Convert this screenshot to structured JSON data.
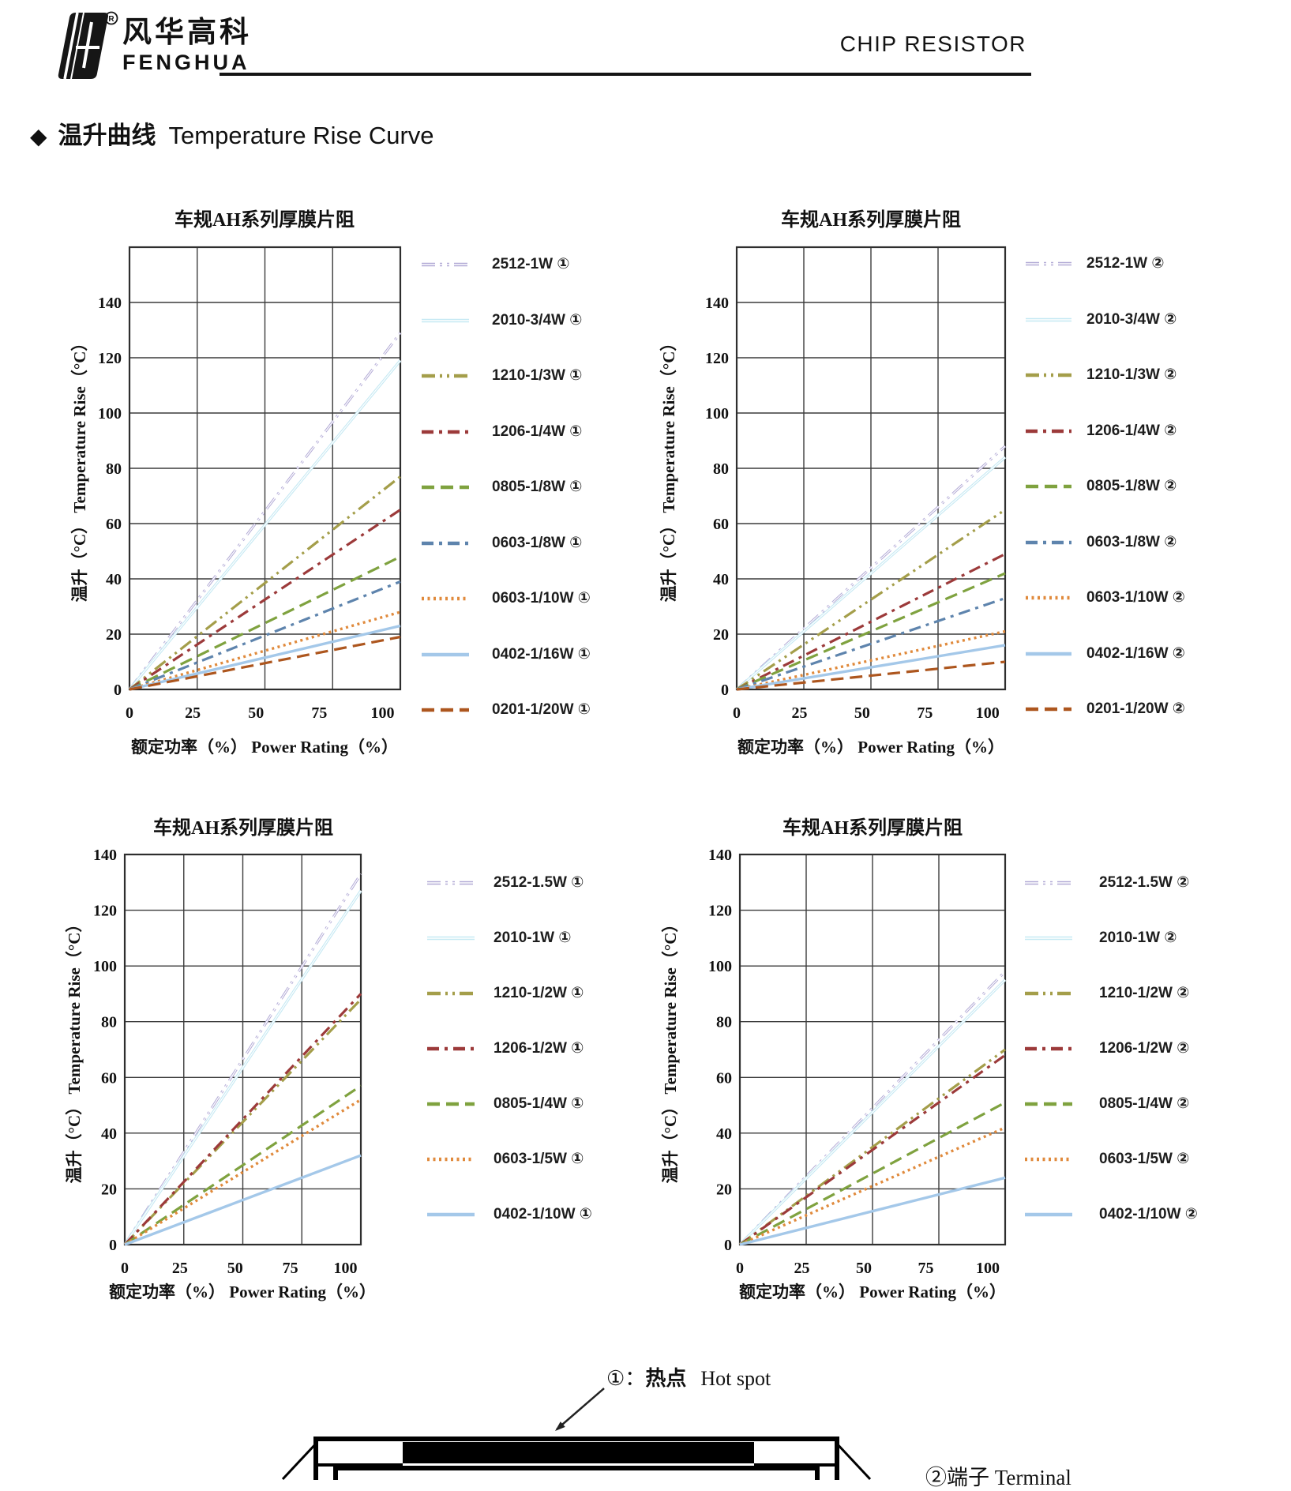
{
  "header": {
    "brand_cn": "风华高科",
    "brand_en": "FENGHUA",
    "registered_mark": "®",
    "doc_title": "CHIP RESISTOR"
  },
  "section": {
    "bullet": "◆",
    "title_cn": "温升曲线",
    "title_en": "Temperature Rise Curve"
  },
  "footnotes": {
    "hot_spot": {
      "marker": "①：",
      "label_cn": "热点",
      "label_en": "Hot spot"
    },
    "terminal": {
      "text": "②端子 Terminal"
    }
  },
  "chart_data": [
    {
      "type": "line",
      "title": "车规AH系列厚膜片阻",
      "ylabel": "温升（°C）  Temperature Rise（°C）",
      "xlabel": "额定功率（%）   Power Rating（%）",
      "x": [
        0,
        107
      ],
      "xticks": [
        0,
        25,
        50,
        75,
        100
      ],
      "yticks": [
        0,
        20,
        40,
        60,
        80,
        100,
        120,
        140
      ],
      "xlim": [
        0,
        107
      ],
      "ylim": [
        0,
        160
      ],
      "grid": true,
      "legend_position": "right",
      "series": [
        {
          "name": "2512-1W ①",
          "color": "#b3abd6",
          "style": "dashdotdot",
          "double": true,
          "values": [
            0,
            129
          ]
        },
        {
          "name": "2010-3/4W ①",
          "color": "#c6e9f3",
          "style": "solid",
          "double": true,
          "values": [
            0,
            119
          ]
        },
        {
          "name": "1210-1/3W ①",
          "color": "#a49e4a",
          "style": "dashdotdot",
          "double": false,
          "values": [
            0,
            77
          ]
        },
        {
          "name": "1206-1/4W ①",
          "color": "#9c3a3a",
          "style": "dashdot",
          "double": false,
          "values": [
            0,
            65
          ]
        },
        {
          "name": "0805-1/8W ①",
          "color": "#7fa23f",
          "style": "dashed",
          "double": false,
          "values": [
            0,
            48
          ]
        },
        {
          "name": "0603-1/8W ①",
          "color": "#5e84ad",
          "style": "dashdot",
          "double": false,
          "values": [
            0,
            39
          ]
        },
        {
          "name": "0603-1/10W ①",
          "color": "#e08a3c",
          "style": "dotted",
          "double": false,
          "values": [
            0,
            28
          ]
        },
        {
          "name": "0402-1/16W ①",
          "color": "#a4c8e9",
          "style": "solid",
          "double": false,
          "values": [
            0,
            23
          ]
        },
        {
          "name": "0201-1/20W ①",
          "color": "#ad561e",
          "style": "dashed",
          "double": false,
          "values": [
            0,
            19
          ]
        }
      ]
    },
    {
      "type": "line",
      "title": "车规AH系列厚膜片阻",
      "ylabel": "温升（°C）  Temperature Rise（°C）",
      "xlabel": "额定功率（%）   Power Rating（%）",
      "x": [
        0,
        107
      ],
      "xticks": [
        0,
        25,
        50,
        75,
        100
      ],
      "yticks": [
        0,
        20,
        40,
        60,
        80,
        100,
        120,
        140
      ],
      "xlim": [
        0,
        107
      ],
      "ylim": [
        0,
        160
      ],
      "grid": true,
      "legend_position": "right",
      "series": [
        {
          "name": "2512-1W ②",
          "color": "#b3abd6",
          "style": "dashdotdot",
          "double": true,
          "values": [
            0,
            88
          ]
        },
        {
          "name": "2010-3/4W ②",
          "color": "#c6e9f3",
          "style": "solid",
          "double": true,
          "values": [
            0,
            84
          ]
        },
        {
          "name": "1210-1/3W ②",
          "color": "#a49e4a",
          "style": "dashdotdot",
          "double": false,
          "values": [
            0,
            65
          ]
        },
        {
          "name": "1206-1/4W ②",
          "color": "#9c3a3a",
          "style": "dashdot",
          "double": false,
          "values": [
            0,
            49
          ]
        },
        {
          "name": "0805-1/8W ②",
          "color": "#7fa23f",
          "style": "dashed",
          "double": false,
          "values": [
            0,
            42
          ]
        },
        {
          "name": "0603-1/8W ②",
          "color": "#5e84ad",
          "style": "dashdot",
          "double": false,
          "values": [
            0,
            33
          ]
        },
        {
          "name": "0603-1/10W ②",
          "color": "#e08a3c",
          "style": "dotted",
          "double": false,
          "values": [
            0,
            21
          ]
        },
        {
          "name": "0402-1/16W ②",
          "color": "#a4c8e9",
          "style": "solid",
          "double": false,
          "values": [
            0,
            16
          ]
        },
        {
          "name": "0201-1/20W ②",
          "color": "#ad561e",
          "style": "dashed",
          "double": false,
          "values": [
            0,
            10
          ]
        }
      ]
    },
    {
      "type": "line",
      "title": "车规AH系列厚膜片阻",
      "ylabel": "温升（°C）  Temperature Rise（°C）",
      "xlabel": "额定功率（%）   Power Rating（%）",
      "x": [
        0,
        107
      ],
      "xticks": [
        0,
        25,
        50,
        75,
        100
      ],
      "yticks": [
        0,
        20,
        40,
        60,
        80,
        100,
        120,
        140
      ],
      "xlim": [
        0,
        107
      ],
      "ylim": [
        0,
        140
      ],
      "grid": true,
      "legend_position": "right",
      "series": [
        {
          "name": "2512-1.5W ①",
          "color": "#b3abd6",
          "style": "dashdotdot",
          "double": true,
          "values": [
            0,
            133
          ]
        },
        {
          "name": "2010-1W ①",
          "color": "#c6e9f3",
          "style": "solid",
          "double": true,
          "values": [
            0,
            127
          ]
        },
        {
          "name": "1210-1/2W ①",
          "color": "#a49e4a",
          "style": "dashdotdot",
          "double": false,
          "values": [
            0,
            88
          ]
        },
        {
          "name": "1206-1/2W ①",
          "color": "#9c3a3a",
          "style": "dashdot",
          "double": false,
          "values": [
            0,
            90
          ]
        },
        {
          "name": "0805-1/4W ①",
          "color": "#7fa23f",
          "style": "dashed",
          "double": false,
          "values": [
            0,
            57
          ]
        },
        {
          "name": "0603-1/5W ①",
          "color": "#e08a3c",
          "style": "dotted",
          "double": false,
          "values": [
            0,
            52
          ]
        },
        {
          "name": "0402-1/10W ①",
          "color": "#a4c8e9",
          "style": "solid",
          "double": false,
          "values": [
            0,
            32
          ]
        }
      ]
    },
    {
      "type": "line",
      "title": "车规AH系列厚膜片阻",
      "ylabel": "温升（°C）  Temperature Rise（°C）",
      "xlabel": "额定功率（%）   Power Rating（%）",
      "x": [
        0,
        107
      ],
      "xticks": [
        0,
        25,
        50,
        75,
        100
      ],
      "yticks": [
        0,
        20,
        40,
        60,
        80,
        100,
        120,
        140
      ],
      "xlim": [
        0,
        107
      ],
      "ylim": [
        0,
        140
      ],
      "grid": true,
      "legend_position": "right",
      "series": [
        {
          "name": "2512-1.5W ②",
          "color": "#b3abd6",
          "style": "dashdotdot",
          "double": true,
          "values": [
            0,
            98
          ]
        },
        {
          "name": "2010-1W ②",
          "color": "#c6e9f3",
          "style": "solid",
          "double": true,
          "values": [
            0,
            95
          ]
        },
        {
          "name": "1210-1/2W ②",
          "color": "#a49e4a",
          "style": "dashdotdot",
          "double": false,
          "values": [
            0,
            70
          ]
        },
        {
          "name": "1206-1/2W ②",
          "color": "#9c3a3a",
          "style": "dashdot",
          "double": false,
          "values": [
            0,
            68
          ]
        },
        {
          "name": "0805-1/4W ②",
          "color": "#7fa23f",
          "style": "dashed",
          "double": false,
          "values": [
            0,
            51
          ]
        },
        {
          "name": "0603-1/5W ②",
          "color": "#e08a3c",
          "style": "dotted",
          "double": false,
          "values": [
            0,
            42
          ]
        },
        {
          "name": "0402-1/10W ②",
          "color": "#a4c8e9",
          "style": "solid",
          "double": false,
          "values": [
            0,
            24
          ]
        }
      ]
    }
  ]
}
